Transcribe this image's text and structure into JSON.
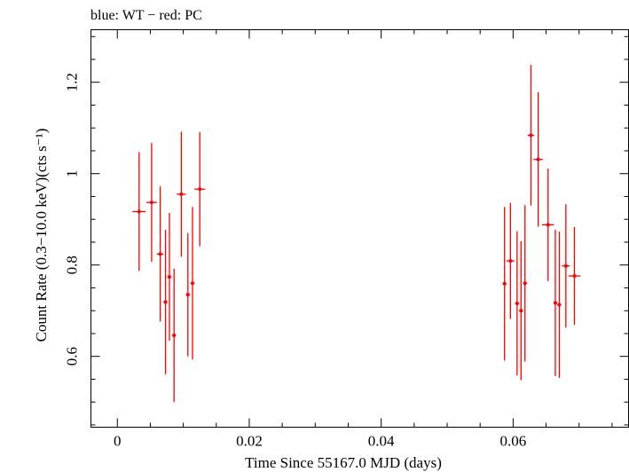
{
  "chart_data": {
    "type": "scatter",
    "title": "blue: WT − red: PC",
    "xlabel": "Time Since 55167.0 MJD (days)",
    "ylabel": "Count Rate (0.3−10.0 keV)(cts s⁻¹)",
    "xlim": [
      -0.004,
      0.0775
    ],
    "ylim": [
      0.445,
      1.315
    ],
    "x_ticks": [
      0,
      0.02,
      0.04,
      0.06
    ],
    "x_tick_labels": [
      "0",
      "0.02",
      "0.04",
      "0.06"
    ],
    "y_ticks": [
      0.6,
      0.8,
      1.0,
      1.2
    ],
    "y_tick_labels": [
      "0.6",
      "0.8",
      "1",
      "1.2"
    ],
    "grid": false,
    "series": [
      {
        "name": "PC",
        "color": "#ff0000",
        "points": [
          {
            "x": 0.0033,
            "xerr": 0.001,
            "y": 0.917,
            "yerr": 0.13
          },
          {
            "x": 0.0052,
            "xerr": 0.0008,
            "y": 0.937,
            "yerr": 0.13
          },
          {
            "x": 0.0065,
            "xerr": 0.0005,
            "y": 0.824,
            "yerr": 0.148
          },
          {
            "x": 0.0073,
            "xerr": 0.0003,
            "y": 0.719,
            "yerr": 0.158
          },
          {
            "x": 0.0079,
            "xerr": 0.0003,
            "y": 0.774,
            "yerr": 0.14
          },
          {
            "x": 0.0086,
            "xerr": 0.0003,
            "y": 0.646,
            "yerr": 0.146
          },
          {
            "x": 0.0097,
            "xerr": 0.0007,
            "y": 0.955,
            "yerr": 0.137
          },
          {
            "x": 0.0107,
            "xerr": 0.0003,
            "y": 0.735,
            "yerr": 0.135
          },
          {
            "x": 0.0114,
            "xerr": 0.0003,
            "y": 0.76,
            "yerr": 0.167
          },
          {
            "x": 0.0125,
            "xerr": 0.0008,
            "y": 0.966,
            "yerr": 0.125
          },
          {
            "x": 0.0587,
            "xerr": 0.0003,
            "y": 0.759,
            "yerr": 0.168
          },
          {
            "x": 0.0596,
            "xerr": 0.0006,
            "y": 0.809,
            "yerr": 0.127
          },
          {
            "x": 0.0606,
            "xerr": 0.0003,
            "y": 0.716,
            "yerr": 0.158
          },
          {
            "x": 0.0612,
            "xerr": 0.0003,
            "y": 0.7,
            "yerr": 0.152
          },
          {
            "x": 0.0618,
            "xerr": 0.0003,
            "y": 0.76,
            "yerr": 0.171
          },
          {
            "x": 0.0627,
            "xerr": 0.0005,
            "y": 1.084,
            "yerr": 0.154
          },
          {
            "x": 0.0638,
            "xerr": 0.0007,
            "y": 1.031,
            "yerr": 0.147
          },
          {
            "x": 0.0653,
            "xerr": 0.0009,
            "y": 0.888,
            "yerr": 0.123
          },
          {
            "x": 0.0664,
            "xerr": 0.0003,
            "y": 0.717,
            "yerr": 0.16
          },
          {
            "x": 0.067,
            "xerr": 0.0003,
            "y": 0.713,
            "yerr": 0.16
          },
          {
            "x": 0.068,
            "xerr": 0.0006,
            "y": 0.798,
            "yerr": 0.135
          },
          {
            "x": 0.0693,
            "xerr": 0.0009,
            "y": 0.776,
            "yerr": 0.107
          }
        ]
      }
    ]
  }
}
